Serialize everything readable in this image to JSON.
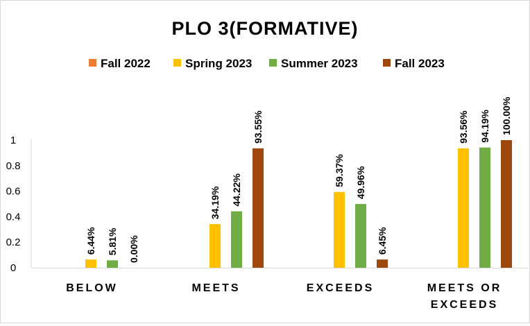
{
  "chart_data": {
    "type": "bar",
    "title": "PLO 3(FORMATIVE)",
    "xlabel": "",
    "ylabel": "",
    "ylim": [
      0,
      1
    ],
    "yticks": [
      "0",
      "0.2",
      "0.4",
      "0.6",
      "0.8",
      "1"
    ],
    "grid": false,
    "legend_position": "top",
    "categories": [
      [
        "BELOW"
      ],
      [
        "MEETS"
      ],
      [
        "EXCEEDS"
      ],
      [
        "MEETS OR",
        "EXCEEDS"
      ]
    ],
    "series": [
      {
        "name": "Fall 2022",
        "color": "#ED7D31",
        "values": [
          null,
          null,
          null,
          null
        ],
        "labels": [
          "",
          "",
          "",
          ""
        ]
      },
      {
        "name": "Spring 2023",
        "color": "#FFC000",
        "values": [
          0.0644,
          0.3419,
          0.5937,
          0.9356
        ],
        "labels": [
          "6.44%",
          "34.19%",
          "59.37%",
          "93.56%"
        ]
      },
      {
        "name": "Summer 2023",
        "color": "#70AD47",
        "values": [
          0.0581,
          0.4422,
          0.4996,
          0.9419
        ],
        "labels": [
          "5.81%",
          "44.22%",
          "49.96%",
          "94.19%"
        ]
      },
      {
        "name": "Fall 2023",
        "color": "#9E480E",
        "values": [
          0.0,
          0.9355,
          0.0645,
          1.0
        ],
        "labels": [
          "0.00%",
          "93.55%",
          "6.45%",
          "100.00%"
        ]
      }
    ]
  }
}
